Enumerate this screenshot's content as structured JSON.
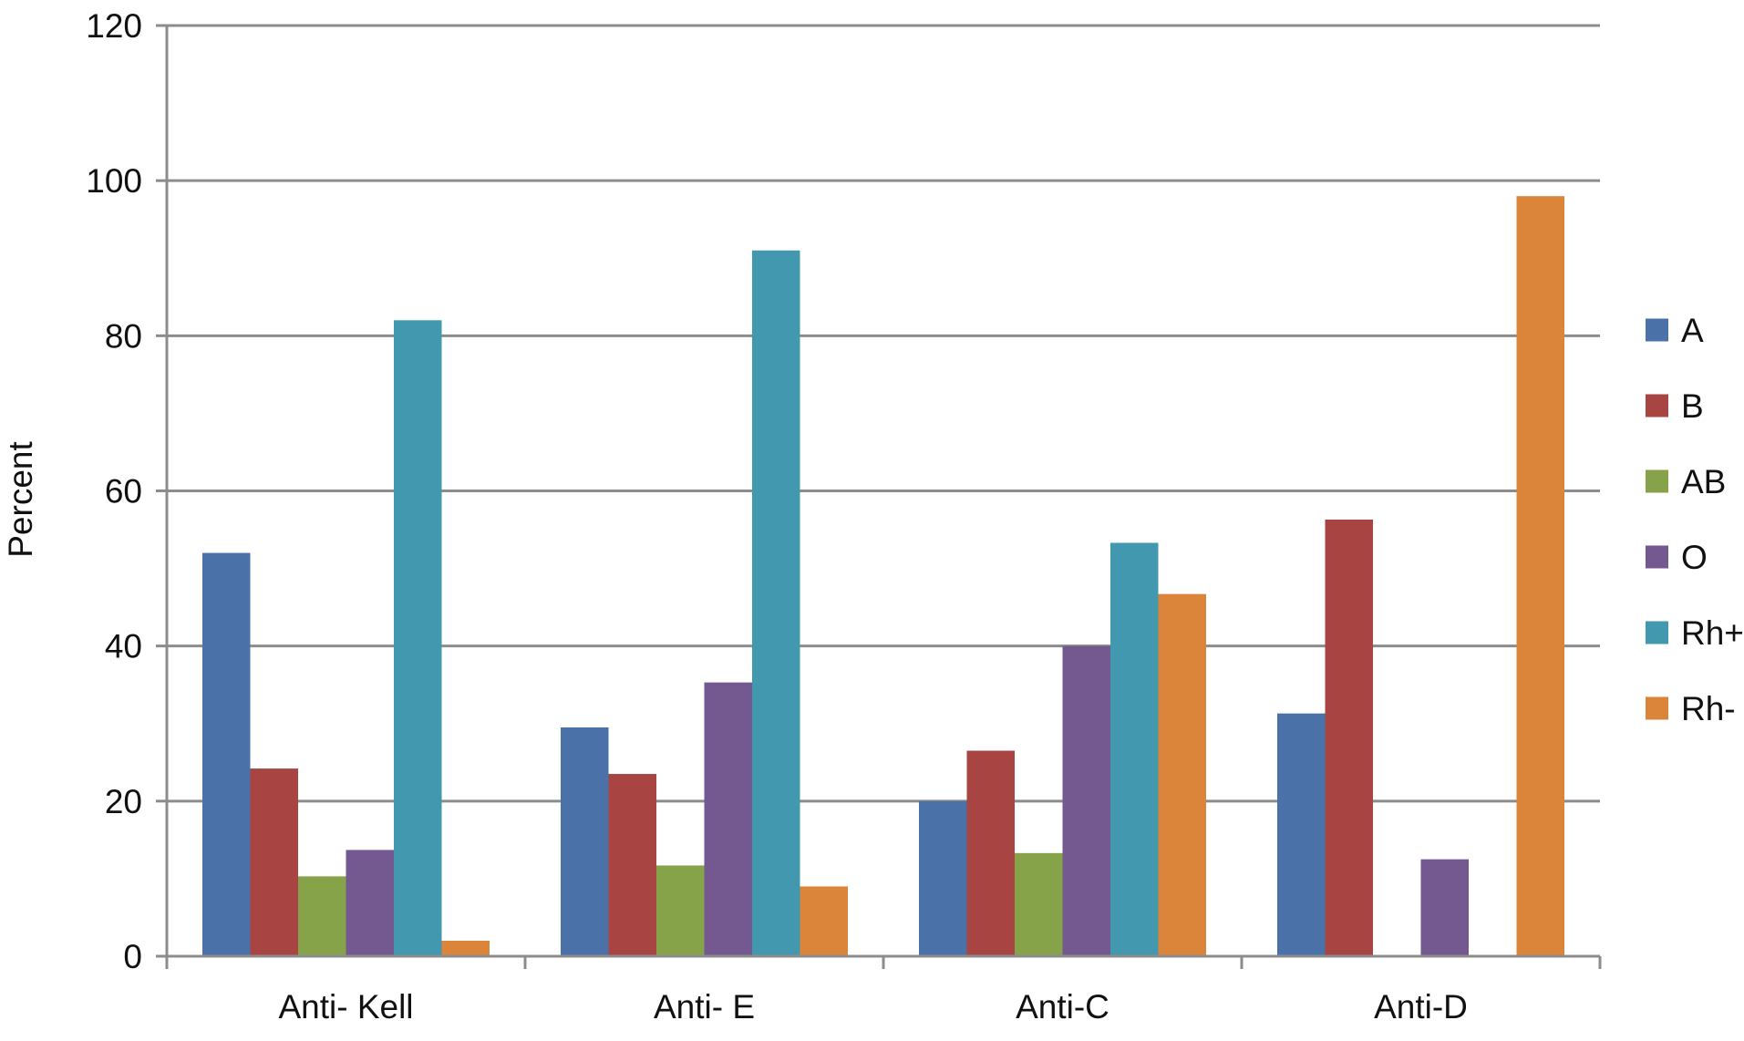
{
  "chart_data": {
    "type": "bar",
    "title": "",
    "xlabel": "",
    "ylabel": "Percent",
    "ylim": [
      0,
      120
    ],
    "yticks": [
      0,
      20,
      40,
      60,
      80,
      100,
      120
    ],
    "grid": true,
    "legend_position": "right",
    "categories": [
      "Anti- Kell",
      "Anti- E",
      "Anti-C",
      "Anti-D"
    ],
    "series": [
      {
        "name": "A",
        "color": "#4A71A8",
        "values": [
          52,
          29.5,
          20,
          31.3
        ]
      },
      {
        "name": "B",
        "color": "#A84542",
        "values": [
          24.2,
          23.5,
          26.5,
          56.3
        ]
      },
      {
        "name": "AB",
        "color": "#87A34A",
        "values": [
          10.3,
          11.7,
          13.3,
          0
        ]
      },
      {
        "name": "O",
        "color": "#735990",
        "values": [
          13.7,
          35.3,
          40,
          12.5
        ]
      },
      {
        "name": "Rh+",
        "color": "#4298AF",
        "values": [
          82,
          91,
          53.3,
          0
        ]
      },
      {
        "name": "Rh-",
        "color": "#DB853B",
        "values": [
          2,
          9,
          46.7,
          98
        ]
      }
    ]
  }
}
